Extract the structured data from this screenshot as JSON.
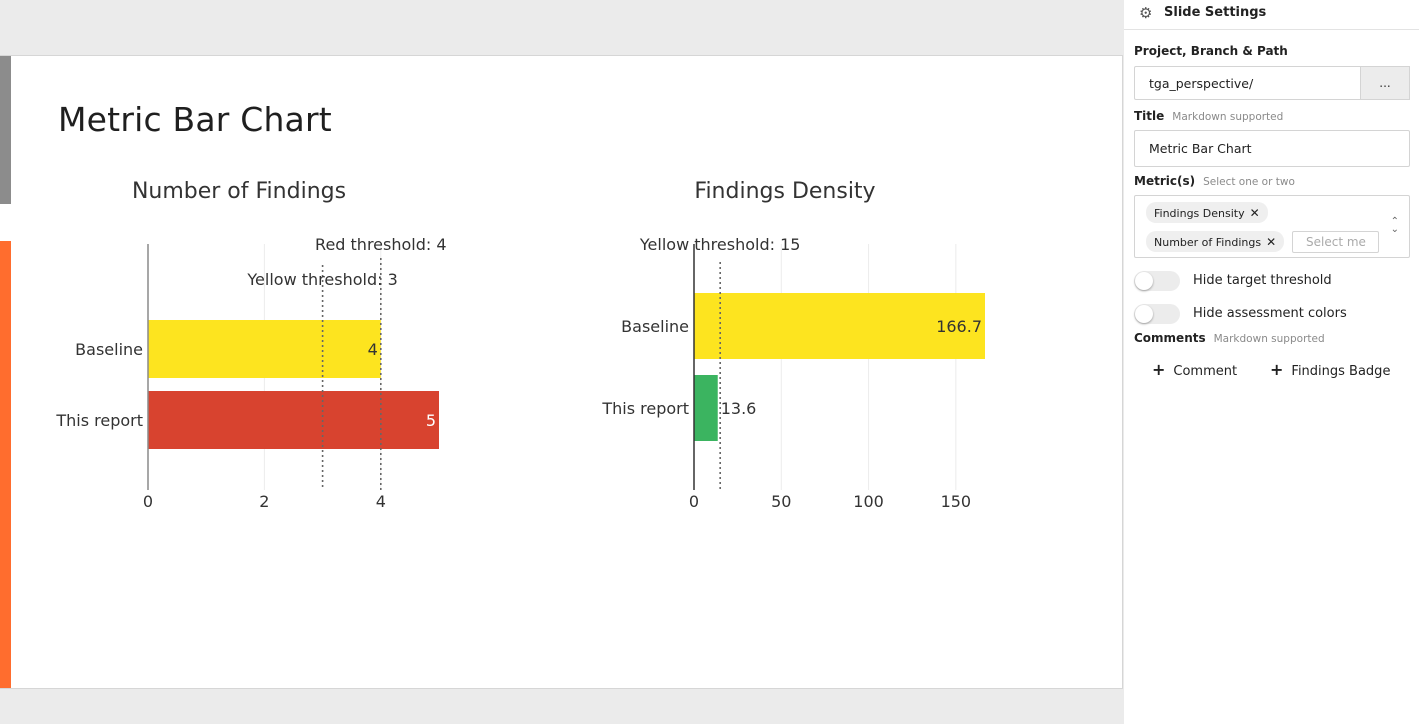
{
  "slide": {
    "title": "Metric Bar Chart"
  },
  "chart_data": [
    {
      "type": "bar",
      "title": "Number of Findings",
      "orientation": "horizontal",
      "categories": [
        "Baseline",
        "This report"
      ],
      "values": [
        4,
        5
      ],
      "value_labels": [
        "4",
        "5"
      ],
      "bar_colors": [
        "#fde41f",
        "#d8432f"
      ],
      "xlim": [
        0,
        5
      ],
      "xticks": [
        0,
        2,
        4
      ],
      "grid": true,
      "thresholds": [
        {
          "label": "Red threshold: 4",
          "value": 4
        },
        {
          "label": "Yellow threshold: 3",
          "value": 3
        }
      ]
    },
    {
      "type": "bar",
      "title": "Findings Density",
      "orientation": "horizontal",
      "categories": [
        "Baseline",
        "This report"
      ],
      "values": [
        166.7,
        13.6
      ],
      "value_labels": [
        "166.7",
        "13.6"
      ],
      "bar_colors": [
        "#fde41f",
        "#3bb460"
      ],
      "xlim": [
        0,
        166.7
      ],
      "xticks": [
        0,
        50,
        100,
        150
      ],
      "grid": true,
      "thresholds": [
        {
          "label": "Yellow threshold: 15",
          "value": 15
        }
      ]
    }
  ],
  "panel": {
    "title": "Slide Settings",
    "project_label": "Project, Branch & Path",
    "project_value": "tga_perspective/",
    "browse_label": "...",
    "title_label": "Title",
    "title_hint": "Markdown supported",
    "title_value": "Metric Bar Chart",
    "metrics_label": "Metric(s)",
    "metrics_hint": "Select one or two",
    "metrics": [
      "Findings Density",
      "Number of Findings"
    ],
    "remove_glyph": "✕",
    "metrics_placeholder": "Select me",
    "toggle_target": "Hide target threshold",
    "toggle_colors": "Hide assessment colors",
    "comments_label": "Comments",
    "comments_hint": "Markdown supported",
    "add_comment": "Comment",
    "add_badge": "Findings Badge",
    "plus_glyph": "+"
  }
}
